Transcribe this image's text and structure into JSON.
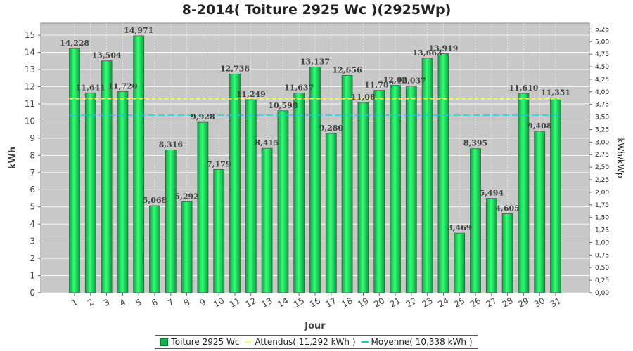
{
  "chart_data": {
    "type": "bar",
    "title": "8-2014( Toiture 2925 Wc )(2925Wp)",
    "xlabel": "Jour",
    "ylabel": "kWh",
    "y2label": "kWh/kWp",
    "categories": [
      "1",
      "2",
      "3",
      "4",
      "5",
      "6",
      "7",
      "8",
      "9",
      "10",
      "11",
      "12",
      "13",
      "14",
      "15",
      "16",
      "17",
      "18",
      "19",
      "20",
      "21",
      "22",
      "23",
      "24",
      "25",
      "26",
      "27",
      "28",
      "29",
      "30",
      "31"
    ],
    "series": [
      {
        "name": "Toiture 2925 Wc",
        "color": "#12c84f",
        "values": [
          14.228,
          11.641,
          13.504,
          11.72,
          14.971,
          5.068,
          8.316,
          5.292,
          9.928,
          7.179,
          12.738,
          11.249,
          8.415,
          10.598,
          11.637,
          13.137,
          9.28,
          12.656,
          11.08,
          11.787,
          12.08,
          12.037,
          13.663,
          13.919,
          3.469,
          8.395,
          5.494,
          4.605,
          11.61,
          9.408,
          11.351
        ],
        "labels": [
          "14,228",
          "11,641",
          "13,504",
          "11,720",
          "14,971",
          "5,068",
          "8,316",
          "5,292",
          "9,928",
          "7,179",
          "12,738",
          "11,249",
          "8,415",
          "10,598",
          "11,637",
          "13,137",
          "9,280",
          "12,656",
          "11,08",
          "11,787",
          "12,08",
          "12,037",
          "13,663",
          "13,919",
          "3,469",
          "8,395",
          "5,494",
          "4,605",
          "11,610",
          "9,408",
          "11,351"
        ]
      }
    ],
    "reference_lines": [
      {
        "name": "Attendus( 11,292 kWh )",
        "value": 11.292,
        "color": "#ffff66"
      },
      {
        "name": "Moyenne( 10,338 kWh )",
        "value": 10.338,
        "color": "#22c5d6"
      }
    ],
    "ylim": [
      0,
      15.7
    ],
    "yticks": [
      "0",
      "1",
      "2",
      "3",
      "4",
      "5",
      "6",
      "7",
      "8",
      "9",
      "10",
      "11",
      "12",
      "13",
      "14",
      "15"
    ],
    "y2lim": [
      0,
      5.367
    ],
    "y2ticks": [
      "0,00",
      "0,25",
      "0,50",
      "0,75",
      "1,00",
      "1,25",
      "1,50",
      "1,75",
      "2,00",
      "2,25",
      "2,50",
      "2,75",
      "3,00",
      "3,25",
      "3,50",
      "3,75",
      "4,00",
      "4,25",
      "4,50",
      "4,75",
      "5,00",
      "5,25"
    ],
    "grid": true,
    "legend_position": "bottom"
  },
  "legend": {
    "items": [
      "Toiture 2925 Wc",
      "Attendus( 11,292 kWh )",
      "Moyenne( 10,338 kWh )"
    ]
  }
}
